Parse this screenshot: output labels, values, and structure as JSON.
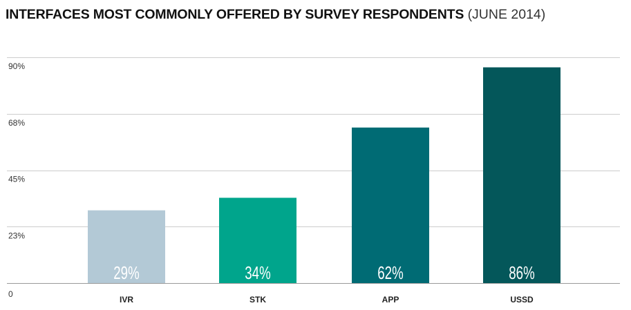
{
  "chart_data": {
    "type": "bar",
    "title": "INTERFACES MOST COMMONLY OFFERED BY SURVEY RESPONDENTS",
    "subtitle": "(JUNE 2014)",
    "xlabel": "",
    "ylabel": "",
    "ylim": [
      0,
      90
    ],
    "yticks": [
      {
        "value": 0,
        "label": "0"
      },
      {
        "value": 22.5,
        "label": "23%"
      },
      {
        "value": 45,
        "label": "45%"
      },
      {
        "value": 67.5,
        "label": "68%"
      },
      {
        "value": 90,
        "label": "90%"
      }
    ],
    "categories": [
      "IVR",
      "STK",
      "APP",
      "USSD"
    ],
    "values": [
      29,
      34,
      62,
      86
    ],
    "value_labels": [
      "29%",
      "34%",
      "62%",
      "86%"
    ],
    "colors": [
      "#b3c9d6",
      "#00a58c",
      "#006b74",
      "#04575a"
    ],
    "label_colors": [
      "#444444",
      "#ffffff",
      "#ffffff",
      "#ffffff"
    ],
    "grid": true,
    "grid_color": "#cccccc",
    "legend": "none"
  }
}
